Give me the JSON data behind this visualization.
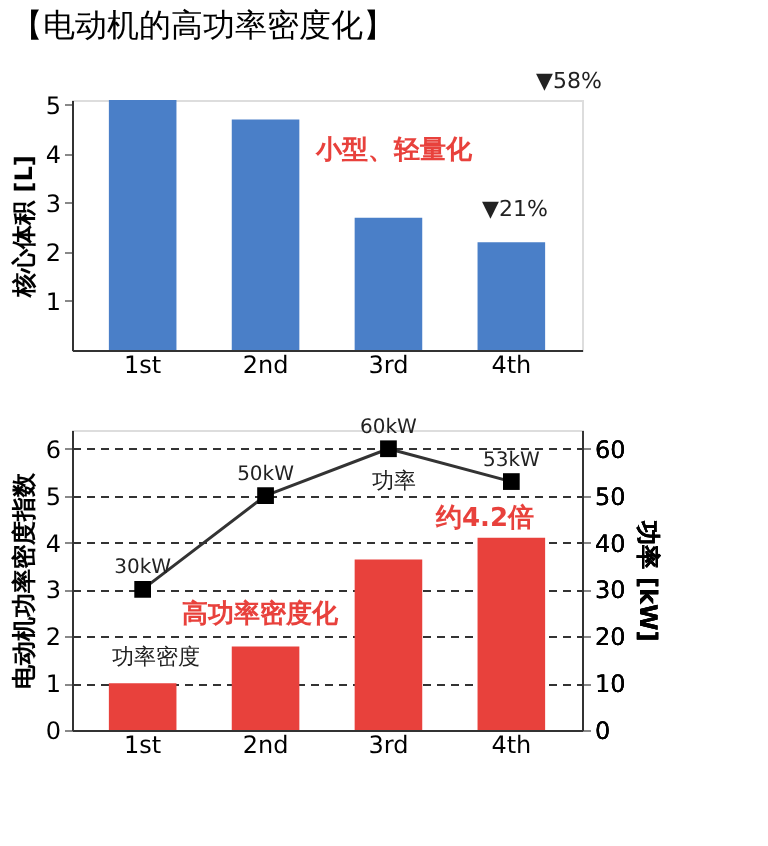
{
  "chart_data": [
    {
      "type": "bar",
      "title": "【电动机的高功率密度化】",
      "categories": [
        "1st",
        "2nd",
        "3rd",
        "4th"
      ],
      "ylabel": "核心体积 [L]",
      "ylim": [
        0,
        5.1
      ],
      "yticks": [
        1,
        2,
        3,
        4,
        5
      ],
      "grid": false,
      "series": [
        {
          "color": "#4a7fc8",
          "values": [
            5.1,
            4.7,
            2.7,
            2.2
          ]
        }
      ],
      "annotations": [
        "▼58%",
        "▼21%",
        "小型、轻量化"
      ]
    },
    {
      "type": "bar",
      "categories": [
        "1st",
        "2nd",
        "3rd",
        "4th"
      ],
      "ylabel": "电动机功率密度指数",
      "y2label": "功率 [kW]",
      "ylim": [
        0,
        6.4
      ],
      "yticks": [
        0,
        1,
        2,
        3,
        4,
        5,
        6
      ],
      "y2lim": [
        0,
        64
      ],
      "y2ticks": [
        0,
        10,
        20,
        30,
        40,
        50,
        60
      ],
      "grid": "y",
      "series": [
        {
          "color": "#e8413c",
          "values": [
            1.0,
            1.78,
            3.64,
            4.1
          ]
        },
        {
          "type": "line",
          "axis": "y2",
          "color": "#333333",
          "marker": "square",
          "line_style": "solid",
          "values": [
            30,
            50,
            60,
            53
          ],
          "value_labels": [
            "30kW",
            "50kW",
            "60kW",
            "53kW"
          ]
        }
      ],
      "annotations": [
        "功率",
        "高功率密度化",
        "功率密度",
        "约4.2倍"
      ]
    }
  ]
}
